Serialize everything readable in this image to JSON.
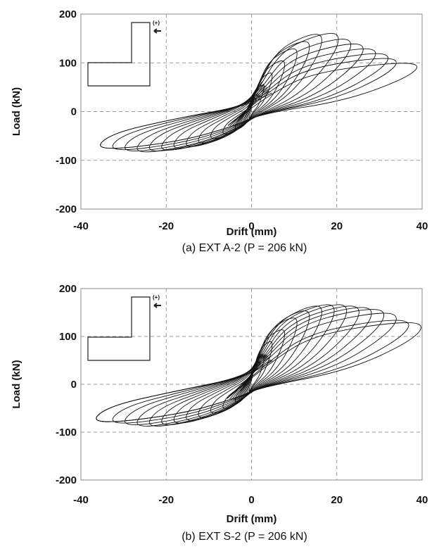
{
  "chart_data": [
    {
      "type": "line",
      "caption": "(a) EXT A-2 (P = 206 kN)",
      "xlabel": "Drift (mm)",
      "ylabel": "Load (kN)",
      "xlim": [
        -40,
        40
      ],
      "ylim": [
        -200,
        200
      ],
      "xticks": [
        "-40",
        "-20",
        "0",
        "20",
        "40"
      ],
      "yticks": [
        "200",
        "100",
        "0",
        "-100",
        "-200"
      ],
      "grid": "dashed",
      "inset_label": "(+)",
      "cycles_peak_pos": [
        [
          3,
          55
        ],
        [
          5,
          80
        ],
        [
          8,
          105
        ],
        [
          11,
          130
        ],
        [
          14,
          145
        ],
        [
          17,
          160
        ],
        [
          21,
          162
        ],
        [
          24,
          150
        ],
        [
          27,
          140
        ],
        [
          30,
          130
        ],
        [
          33,
          120
        ],
        [
          35,
          110
        ],
        [
          40,
          100
        ]
      ],
      "cycles_peak_neg": [
        [
          -4,
          -40
        ],
        [
          -7,
          -50
        ],
        [
          -10,
          -60
        ],
        [
          -13,
          -70
        ],
        [
          -16,
          -78
        ],
        [
          -19,
          -82
        ],
        [
          -22,
          -86
        ],
        [
          -25,
          -88
        ],
        [
          -28,
          -90
        ],
        [
          -31,
          -88
        ],
        [
          -34,
          -85
        ],
        [
          -37,
          -82
        ]
      ]
    },
    {
      "type": "line",
      "caption": "(b) EXT S-2 (P = 206 kN)",
      "xlabel": "Drift (mm)",
      "ylabel": "Load (kN)",
      "xlim": [
        -40,
        40
      ],
      "ylim": [
        -200,
        200
      ],
      "xticks": [
        "-40",
        "-20",
        "0",
        "20",
        "40"
      ],
      "yticks": [
        "200",
        "100",
        "0",
        "-100",
        "-200"
      ],
      "grid": "dashed",
      "inset_label": "(+)",
      "cycles_peak_pos": [
        [
          3,
          60
        ],
        [
          5,
          90
        ],
        [
          8,
          115
        ],
        [
          11,
          140
        ],
        [
          14,
          155
        ],
        [
          17,
          165
        ],
        [
          20,
          168
        ],
        [
          23,
          168
        ],
        [
          26,
          165
        ],
        [
          29,
          162
        ],
        [
          32,
          158
        ],
        [
          35,
          150
        ],
        [
          38,
          135
        ],
        [
          41,
          130
        ]
      ],
      "cycles_peak_neg": [
        [
          -4,
          -40
        ],
        [
          -7,
          -55
        ],
        [
          -10,
          -65
        ],
        [
          -13,
          -75
        ],
        [
          -16,
          -82
        ],
        [
          -19,
          -88
        ],
        [
          -22,
          -92
        ],
        [
          -25,
          -95
        ],
        [
          -28,
          -95
        ],
        [
          -31,
          -92
        ],
        [
          -34,
          -88
        ],
        [
          -38,
          -85
        ]
      ]
    }
  ]
}
